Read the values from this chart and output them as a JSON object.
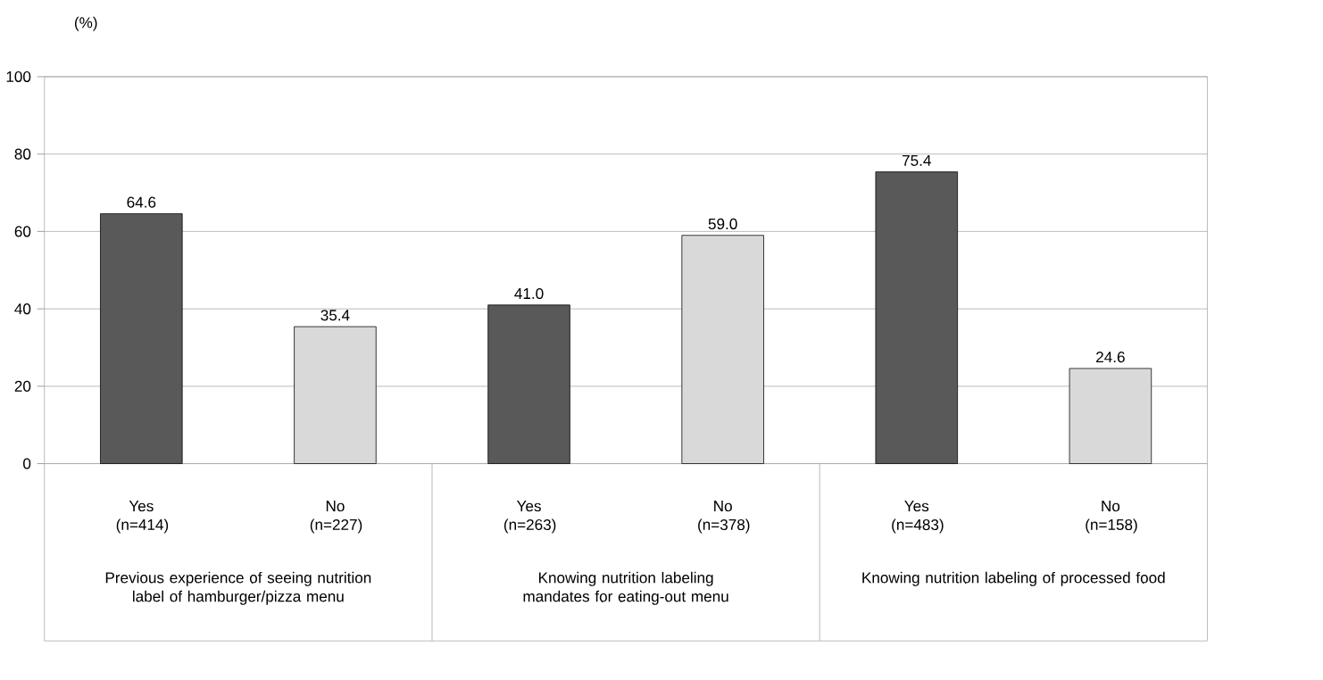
{
  "chart_data": {
    "type": "bar",
    "ylabel": "(%)",
    "categories": [
      "Yes (n=414)",
      "No (n=227)",
      "Yes (n=263)",
      "No (n=378)",
      "Yes (n=483)",
      "No (n=158)"
    ],
    "values": [
      64.6,
      35.4,
      41.0,
      59.0,
      75.4,
      24.6
    ],
    "colors": [
      "#595959",
      "#d9d9d9",
      "#595959",
      "#d9d9d9",
      "#595959",
      "#d9d9d9"
    ],
    "value_labels": [
      "64.6",
      "35.4",
      "41.0",
      "59.0",
      "75.4",
      "24.6"
    ],
    "ylim": [
      0,
      100
    ],
    "yticks": [
      0,
      20,
      40,
      60,
      80,
      100
    ],
    "grid": "y",
    "annotations": [
      "Previous experience of seeing nutrition label of hamburger/pizza menu",
      "Knowing nutrition labeling mandates for eating-out menu",
      "Knowing nutrition labeling of processed food"
    ]
  }
}
